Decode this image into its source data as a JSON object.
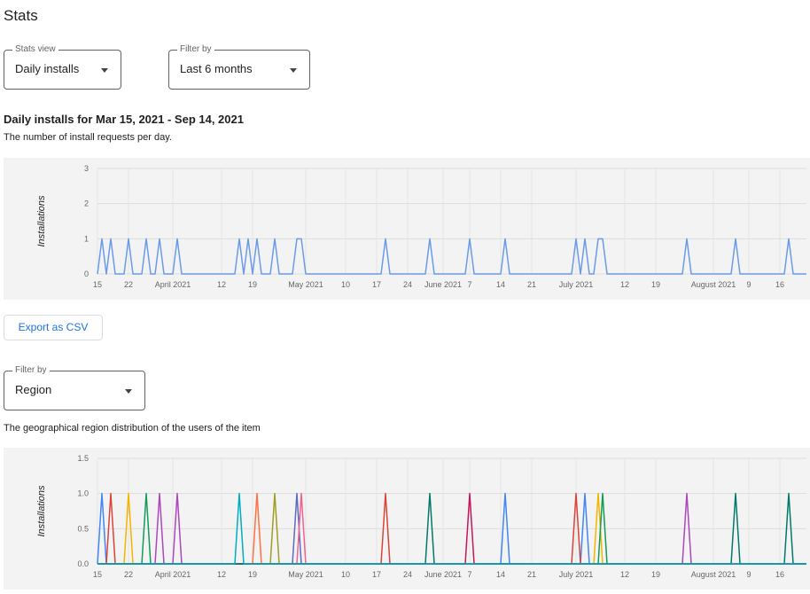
{
  "page": {
    "title": "Stats",
    "stats_view": {
      "label": "Stats view",
      "value": "Daily installs"
    },
    "period": {
      "label": "Filter by",
      "value": "Last 6 months"
    },
    "export": "Export as CSV",
    "region": {
      "label": "Filter by",
      "value": "Region"
    }
  },
  "chart_data": [
    {
      "type": "line",
      "title": "Daily installs for Mar 15, 2021 - Sep 14, 2021",
      "subtitle": "The number of install requests per day.",
      "y_label": "Installations",
      "ylim": [
        0,
        3
      ],
      "yticks": [
        0,
        1,
        2,
        3
      ],
      "xlim": [
        "2021-03-15",
        "2021-08-22"
      ],
      "xticks": [
        {
          "value": "2021-03-15",
          "label": "15"
        },
        {
          "value": "2021-03-22",
          "label": "22"
        },
        {
          "value": "2021-04-01",
          "label": "April 2021"
        },
        {
          "value": "2021-04-12",
          "label": "12"
        },
        {
          "value": "2021-04-19",
          "label": "19"
        },
        {
          "value": "2021-05-01",
          "label": "May 2021"
        },
        {
          "value": "2021-05-10",
          "label": "10"
        },
        {
          "value": "2021-05-17",
          "label": "17"
        },
        {
          "value": "2021-05-24",
          "label": "24"
        },
        {
          "value": "2021-06-01",
          "label": "June 2021"
        },
        {
          "value": "2021-06-07",
          "label": "7"
        },
        {
          "value": "2021-06-14",
          "label": "14"
        },
        {
          "value": "2021-06-21",
          "label": "21"
        },
        {
          "value": "2021-07-01",
          "label": "July 2021"
        },
        {
          "value": "2021-07-12",
          "label": "12"
        },
        {
          "value": "2021-07-19",
          "label": "19"
        },
        {
          "value": "2021-08-01",
          "label": "August 2021"
        },
        {
          "value": "2021-08-09",
          "label": "9"
        },
        {
          "value": "2021-08-16",
          "label": "16"
        }
      ],
      "grid": true,
      "series": [
        {
          "color": "#6b9be8",
          "x": [
            "2021-03-15",
            "2021-03-16",
            "2021-03-17",
            "2021-03-18",
            "2021-03-19",
            "2021-03-21",
            "2021-03-22",
            "2021-03-23",
            "2021-03-25",
            "2021-03-26",
            "2021-03-27",
            "2021-03-28",
            "2021-03-29",
            "2021-03-30",
            "2021-04-01",
            "2021-04-02",
            "2021-04-03",
            "2021-04-15",
            "2021-04-16",
            "2021-04-17",
            "2021-04-18",
            "2021-04-19",
            "2021-04-20",
            "2021-04-21",
            "2021-04-23",
            "2021-04-24",
            "2021-04-25",
            "2021-04-28",
            "2021-04-29",
            "2021-04-30",
            "2021-05-01",
            "2021-05-18",
            "2021-05-19",
            "2021-05-20",
            "2021-05-28",
            "2021-05-29",
            "2021-05-30",
            "2021-06-06",
            "2021-06-07",
            "2021-06-08",
            "2021-06-14",
            "2021-06-15",
            "2021-06-16",
            "2021-06-30",
            "2021-07-01",
            "2021-07-02",
            "2021-07-03",
            "2021-07-04",
            "2021-07-05",
            "2021-07-06",
            "2021-07-07",
            "2021-07-08",
            "2021-07-25",
            "2021-07-26",
            "2021-07-27",
            "2021-08-05",
            "2021-08-06",
            "2021-08-07",
            "2021-08-17",
            "2021-08-18",
            "2021-08-19",
            "2021-08-22"
          ],
          "values": [
            0,
            1,
            0,
            1,
            0,
            0,
            1,
            0,
            0,
            1,
            0,
            0,
            1,
            0,
            0,
            1,
            0,
            0,
            1,
            0,
            1,
            0,
            1,
            0,
            0,
            1,
            0,
            0,
            1,
            1,
            0,
            0,
            1,
            0,
            0,
            1,
            0,
            0,
            1,
            0,
            0,
            1,
            0,
            0,
            1,
            0,
            1,
            0,
            0,
            1,
            1,
            0,
            0,
            1,
            0,
            0,
            1,
            0,
            0,
            1,
            0,
            0
          ]
        }
      ]
    },
    {
      "type": "line",
      "subtitle": "The geographical region distribution of the users of the item",
      "y_label": "Installations",
      "ylim": [
        0,
        1.5
      ],
      "yticks": [
        {
          "value": 0,
          "label": "0.0"
        },
        {
          "value": 0.5,
          "label": "0.5"
        },
        {
          "value": 1,
          "label": "1.0"
        },
        {
          "value": 1.5,
          "label": "1.5"
        }
      ],
      "xlim": [
        "2021-03-15",
        "2021-08-22"
      ],
      "xticks": [
        {
          "value": "2021-03-15",
          "label": "15"
        },
        {
          "value": "2021-03-22",
          "label": "22"
        },
        {
          "value": "2021-04-01",
          "label": "April 2021"
        },
        {
          "value": "2021-04-12",
          "label": "12"
        },
        {
          "value": "2021-04-19",
          "label": "19"
        },
        {
          "value": "2021-05-01",
          "label": "May 2021"
        },
        {
          "value": "2021-05-10",
          "label": "10"
        },
        {
          "value": "2021-05-17",
          "label": "17"
        },
        {
          "value": "2021-05-24",
          "label": "24"
        },
        {
          "value": "2021-06-01",
          "label": "June 2021"
        },
        {
          "value": "2021-06-07",
          "label": "7"
        },
        {
          "value": "2021-06-14",
          "label": "14"
        },
        {
          "value": "2021-06-21",
          "label": "21"
        },
        {
          "value": "2021-07-01",
          "label": "July 2021"
        },
        {
          "value": "2021-07-12",
          "label": "12"
        },
        {
          "value": "2021-07-19",
          "label": "19"
        },
        {
          "value": "2021-08-01",
          "label": "August 2021"
        },
        {
          "value": "2021-08-09",
          "label": "9"
        },
        {
          "value": "2021-08-16",
          "label": "16"
        }
      ],
      "grid": true,
      "series": [
        {
          "color": "#4285f4",
          "x": [
            "2021-03-15",
            "2021-03-16",
            "2021-03-17",
            "2021-06-14",
            "2021-06-15",
            "2021-06-16",
            "2021-07-02",
            "2021-07-03",
            "2021-07-04",
            "2021-08-22"
          ],
          "values": [
            0,
            1,
            0,
            0,
            1,
            0,
            0,
            1,
            0,
            0
          ]
        },
        {
          "color": "#db4437",
          "x": [
            "2021-03-15",
            "2021-03-17",
            "2021-03-18",
            "2021-03-19",
            "2021-05-18",
            "2021-05-19",
            "2021-05-20",
            "2021-06-30",
            "2021-07-01",
            "2021-07-02",
            "2021-08-22"
          ],
          "values": [
            0,
            0,
            1,
            0,
            0,
            1,
            0,
            0,
            1,
            0,
            0
          ]
        },
        {
          "color": "#f4b400",
          "x": [
            "2021-03-15",
            "2021-03-21",
            "2021-03-22",
            "2021-03-23",
            "2021-07-05",
            "2021-07-06",
            "2021-07-07",
            "2021-08-22"
          ],
          "values": [
            0,
            0,
            1,
            0,
            0,
            1,
            0,
            0
          ]
        },
        {
          "color": "#0f9d58",
          "x": [
            "2021-03-15",
            "2021-03-25",
            "2021-03-26",
            "2021-03-27",
            "2021-07-06",
            "2021-07-07",
            "2021-07-08",
            "2021-08-22"
          ],
          "values": [
            0,
            0,
            1,
            0,
            0,
            1,
            0,
            0
          ]
        },
        {
          "color": "#ab47bc",
          "x": [
            "2021-03-15",
            "2021-03-28",
            "2021-03-29",
            "2021-03-30",
            "2021-04-01",
            "2021-04-02",
            "2021-04-03",
            "2021-07-25",
            "2021-07-26",
            "2021-07-27",
            "2021-08-22"
          ],
          "values": [
            0,
            0,
            1,
            0,
            0,
            1,
            0,
            0,
            1,
            0,
            0
          ]
        },
        {
          "color": "#ff7043",
          "x": [
            "2021-03-15",
            "2021-04-19",
            "2021-04-20",
            "2021-04-21",
            "2021-08-22"
          ],
          "values": [
            0,
            0,
            1,
            0,
            0
          ]
        },
        {
          "color": "#9e9d24",
          "x": [
            "2021-03-15",
            "2021-04-23",
            "2021-04-24",
            "2021-04-25",
            "2021-08-22"
          ],
          "values": [
            0,
            0,
            1,
            0,
            0
          ]
        },
        {
          "color": "#5c6bc0",
          "x": [
            "2021-03-15",
            "2021-04-28",
            "2021-04-29",
            "2021-04-30",
            "2021-08-22"
          ],
          "values": [
            0,
            0,
            1,
            0,
            0
          ]
        },
        {
          "color": "#f06292",
          "x": [
            "2021-03-15",
            "2021-04-29",
            "2021-04-30",
            "2021-05-01",
            "2021-08-22"
          ],
          "values": [
            0,
            0,
            1,
            0,
            0
          ]
        },
        {
          "color": "#c2185b",
          "x": [
            "2021-03-15",
            "2021-06-06",
            "2021-06-07",
            "2021-06-08",
            "2021-08-22"
          ],
          "values": [
            0,
            0,
            1,
            0,
            0
          ]
        },
        {
          "color": "#00796b",
          "x": [
            "2021-03-15",
            "2021-05-28",
            "2021-05-29",
            "2021-05-30",
            "2021-08-05",
            "2021-08-06",
            "2021-08-07",
            "2021-08-17",
            "2021-08-18",
            "2021-08-19",
            "2021-08-22"
          ],
          "values": [
            0,
            0,
            1,
            0,
            0,
            1,
            0,
            0,
            1,
            0,
            0
          ]
        },
        {
          "color": "#00acc1",
          "x": [
            "2021-03-15",
            "2021-04-15",
            "2021-04-16",
            "2021-04-17",
            "2021-08-22"
          ],
          "values": [
            0,
            0,
            1,
            0,
            0
          ]
        }
      ]
    }
  ]
}
